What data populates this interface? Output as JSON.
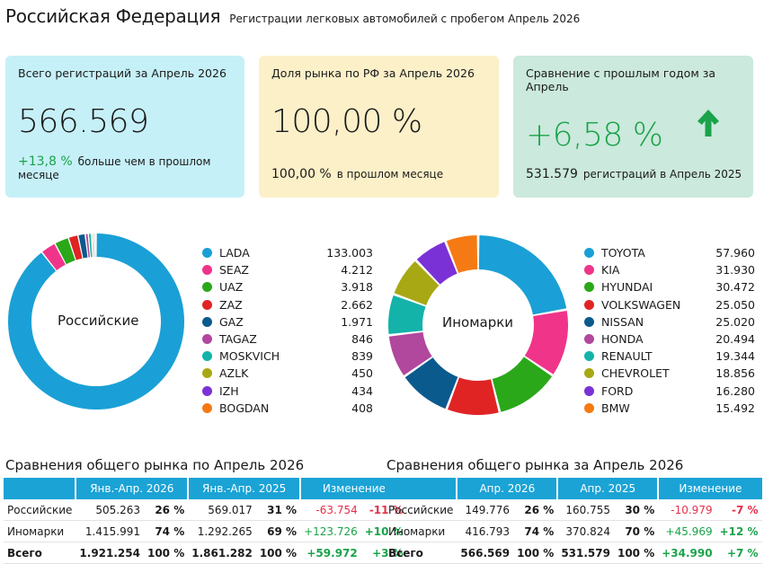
{
  "header": {
    "title": "Российская Федерация",
    "subtitle": "Регистрации легковых автомобилей с пробегом Апрель 2026"
  },
  "cards": {
    "total": {
      "label": "Всего регистраций за Апрель 2026",
      "value": "566.569",
      "delta": "+13,8 %",
      "delta_text": "больше чем в прошлом месяце",
      "bg": "#c6f0f8"
    },
    "share": {
      "label": "Доля рынка по РФ за Апрель 2026",
      "value": "100,00 %",
      "delta": "100,00 %",
      "delta_text": "в прошлом месяце",
      "bg": "#fbf0c8"
    },
    "yoy": {
      "label": "Сравнение с прошлым годом за Апрель",
      "value": "+6,58 %",
      "delta": "531.579",
      "delta_text": "регистраций в Апрель 2025",
      "bg": "#cbe9dc",
      "arrow_icon": "arrow-up-icon"
    }
  },
  "colors": {
    "accent_green": "#1aa34a",
    "accent_red": "#e5304a",
    "table_header": "#1ba3d6"
  },
  "chart_data": [
    {
      "type": "pie",
      "center_label": "Российские",
      "categories": [
        "LADA",
        "SEAZ",
        "UAZ",
        "ZAZ",
        "GAZ",
        "TAGAZ",
        "MOSKVICH",
        "AZLK",
        "IZH",
        "BOGDAN"
      ],
      "values": [
        133003,
        4212,
        3918,
        2662,
        1971,
        846,
        839,
        450,
        434,
        408
      ],
      "labels": [
        "133.003",
        "4.212",
        "3.918",
        "2.662",
        "1.971",
        "846",
        "839",
        "450",
        "434",
        "408"
      ],
      "colors": [
        "#1aa0d6",
        "#f0348a",
        "#2aa81a",
        "#e02424",
        "#0b5a8e",
        "#b2479e",
        "#13b3aa",
        "#a8a814",
        "#7a32d6",
        "#f57a14"
      ]
    },
    {
      "type": "pie",
      "center_label": "Иномарки",
      "categories": [
        "TOYOTA",
        "KIA",
        "HYUNDAI",
        "VOLKSWAGEN",
        "NISSAN",
        "HONDA",
        "RENAULT",
        "CHEVROLET",
        "FORD",
        "BMW"
      ],
      "values": [
        57960,
        31930,
        30472,
        25050,
        25020,
        20494,
        19344,
        18856,
        16280,
        15492
      ],
      "labels": [
        "57.960",
        "31.930",
        "30.472",
        "25.050",
        "25.020",
        "20.494",
        "19.344",
        "18.856",
        "16.280",
        "15.492"
      ],
      "colors": [
        "#1aa0d6",
        "#f0348a",
        "#2aa81a",
        "#e02424",
        "#0b5a8e",
        "#b2479e",
        "#13b3aa",
        "#a8a814",
        "#7a32d6",
        "#f57a14"
      ]
    },
    {
      "type": "table",
      "title": "Сравнения общего рынка по Апрель 2026",
      "headers": [
        "",
        "Янв.-Апр. 2026",
        "Янв.-Апр. 2025",
        "Изменение"
      ],
      "rows": [
        {
          "name": "Российские",
          "v1": "505.263",
          "p1": "26 %",
          "v2": "569.017",
          "p2": "31 %",
          "c1": "-63.754",
          "c2": "-11 %",
          "neg": true
        },
        {
          "name": "Иномарки",
          "v1": "1.415.991",
          "p1": "74 %",
          "v2": "1.292.265",
          "p2": "69 %",
          "c1": "+123.726",
          "c2": "+10 %",
          "neg": false
        },
        {
          "name": "Всего",
          "v1": "1.921.254",
          "p1": "100 %",
          "v2": "1.861.282",
          "p2": "100 %",
          "c1": "+59.972",
          "c2": "+3 %",
          "neg": false
        }
      ]
    },
    {
      "type": "table",
      "title": "Сравнения общего рынка за Апрель 2026",
      "headers": [
        "",
        "Апр. 2026",
        "Апр. 2025",
        "Изменение"
      ],
      "rows": [
        {
          "name": "Российские",
          "v1": "149.776",
          "p1": "26 %",
          "v2": "160.755",
          "p2": "30 %",
          "c1": "-10.979",
          "c2": "-7 %",
          "neg": true
        },
        {
          "name": "Иномарки",
          "v1": "416.793",
          "p1": "74 %",
          "v2": "370.824",
          "p2": "70 %",
          "c1": "+45.969",
          "c2": "+12 %",
          "neg": false
        },
        {
          "name": "Всего",
          "v1": "566.569",
          "p1": "100 %",
          "v2": "531.579",
          "p2": "100 %",
          "c1": "+34.990",
          "c2": "+7 %",
          "neg": false
        }
      ]
    }
  ]
}
